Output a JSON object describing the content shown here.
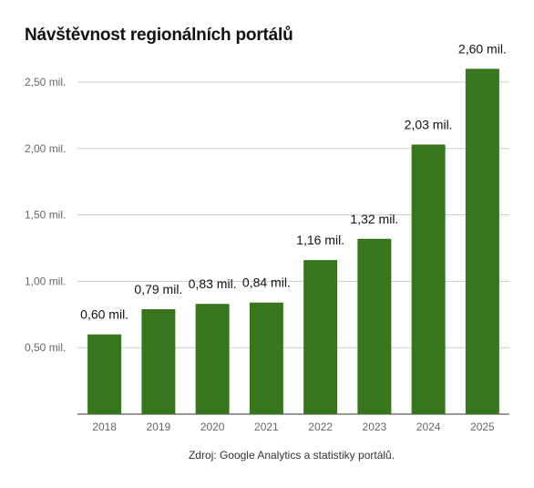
{
  "chart_data": {
    "type": "bar",
    "title": "Návštěvnost regionálních portálů",
    "categories": [
      "2018",
      "2019",
      "2020",
      "2021",
      "2022",
      "2023",
      "2024",
      "2025"
    ],
    "values": [
      0.6,
      0.79,
      0.83,
      0.84,
      1.16,
      1.32,
      2.03,
      2.6
    ],
    "value_labels": [
      "0,60  mil.",
      "0,79  mil.",
      "0,83  mil.",
      "0,84  mil.",
      "1,16  mil.",
      "1,32  mil.",
      "2,03  mil.",
      "2,60  mil."
    ],
    "yticks": [
      0.5,
      1.0,
      1.5,
      2.0,
      2.5
    ],
    "ytick_labels": [
      "0,50  mil.",
      "1,00  mil.",
      "1,50  mil.",
      "2,00  mil.",
      "2,50  mil."
    ],
    "ylim": [
      0,
      2.5
    ],
    "grid": true,
    "legend": "none",
    "bar_color": "#38761d",
    "source": "Zdroj: Google Analytics a statistiky portálů."
  }
}
